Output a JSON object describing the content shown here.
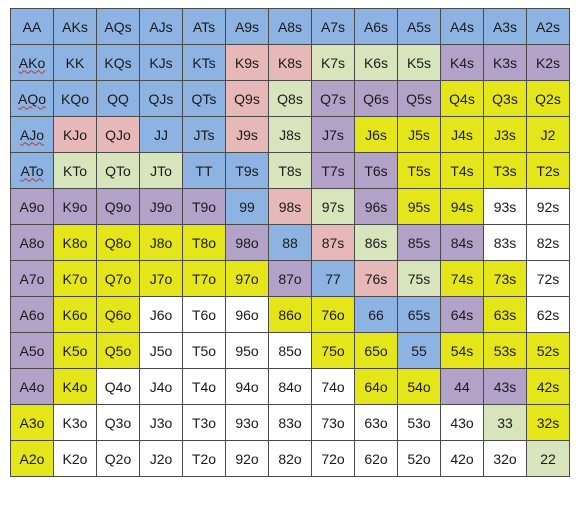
{
  "colors": {
    "B": "#8db3e2",
    "P": "#e6b9b8",
    "G": "#d7e4bc",
    "V": "#b3a2c7",
    "Y": "#e4e619",
    "W": "#ffffff"
  },
  "rows": [
    [
      [
        "AA",
        "B"
      ],
      [
        "AKs",
        "B"
      ],
      [
        "AQs",
        "B"
      ],
      [
        "AJs",
        "B"
      ],
      [
        "ATs",
        "B"
      ],
      [
        "A9s",
        "B"
      ],
      [
        "A8s",
        "B"
      ],
      [
        "A7s",
        "B"
      ],
      [
        "A6s",
        "B"
      ],
      [
        "A5s",
        "B"
      ],
      [
        "A4s",
        "B"
      ],
      [
        "A3s",
        "B"
      ],
      [
        "A2s",
        "B"
      ]
    ],
    [
      [
        "AKo",
        "B"
      ],
      [
        "KK",
        "B"
      ],
      [
        "KQs",
        "B"
      ],
      [
        "KJs",
        "B"
      ],
      [
        "KTs",
        "B"
      ],
      [
        "K9s",
        "P"
      ],
      [
        "K8s",
        "P"
      ],
      [
        "K7s",
        "G"
      ],
      [
        "K6s",
        "G"
      ],
      [
        "K5s",
        "G"
      ],
      [
        "K4s",
        "V"
      ],
      [
        "K3s",
        "V"
      ],
      [
        "K2s",
        "V"
      ]
    ],
    [
      [
        "AQo",
        "B"
      ],
      [
        "KQo",
        "B"
      ],
      [
        "QQ",
        "B"
      ],
      [
        "QJs",
        "B"
      ],
      [
        "QTs",
        "B"
      ],
      [
        "Q9s",
        "P"
      ],
      [
        "Q8s",
        "G"
      ],
      [
        "Q7s",
        "V"
      ],
      [
        "Q6s",
        "V"
      ],
      [
        "Q5s",
        "V"
      ],
      [
        "Q4s",
        "Y"
      ],
      [
        "Q3s",
        "Y"
      ],
      [
        "Q2s",
        "Y"
      ]
    ],
    [
      [
        "AJo",
        "B"
      ],
      [
        "KJo",
        "P"
      ],
      [
        "QJo",
        "P"
      ],
      [
        "JJ",
        "B"
      ],
      [
        "JTs",
        "B"
      ],
      [
        "J9s",
        "P"
      ],
      [
        "J8s",
        "G"
      ],
      [
        "J7s",
        "V"
      ],
      [
        "J6s",
        "Y"
      ],
      [
        "J5s",
        "Y"
      ],
      [
        "J4s",
        "Y"
      ],
      [
        "J3s",
        "Y"
      ],
      [
        "J2",
        "Y"
      ]
    ],
    [
      [
        "ATo",
        "B"
      ],
      [
        "KTo",
        "G"
      ],
      [
        "QTo",
        "G"
      ],
      [
        "JTo",
        "G"
      ],
      [
        "TT",
        "B"
      ],
      [
        "T9s",
        "B"
      ],
      [
        "T8s",
        "G"
      ],
      [
        "T7s",
        "V"
      ],
      [
        "T6s",
        "V"
      ],
      [
        "T5s",
        "Y"
      ],
      [
        "T4s",
        "Y"
      ],
      [
        "T3s",
        "Y"
      ],
      [
        "T2s",
        "Y"
      ]
    ],
    [
      [
        "A9o",
        "V"
      ],
      [
        "K9o",
        "V"
      ],
      [
        "Q9o",
        "V"
      ],
      [
        "J9o",
        "V"
      ],
      [
        "T9o",
        "V"
      ],
      [
        "99",
        "B"
      ],
      [
        "98s",
        "P"
      ],
      [
        "97s",
        "G"
      ],
      [
        "96s",
        "V"
      ],
      [
        "95s",
        "Y"
      ],
      [
        "94s",
        "Y"
      ],
      [
        "93s",
        "W"
      ],
      [
        "92s",
        "W"
      ]
    ],
    [
      [
        "A8o",
        "V"
      ],
      [
        "K8o",
        "Y"
      ],
      [
        "Q8o",
        "Y"
      ],
      [
        "J8o",
        "Y"
      ],
      [
        "T8o",
        "Y"
      ],
      [
        "98o",
        "V"
      ],
      [
        "88",
        "B"
      ],
      [
        "87s",
        "P"
      ],
      [
        "86s",
        "G"
      ],
      [
        "85s",
        "V"
      ],
      [
        "84s",
        "V"
      ],
      [
        "83s",
        "W"
      ],
      [
        "82s",
        "W"
      ]
    ],
    [
      [
        "A7o",
        "V"
      ],
      [
        "K7o",
        "Y"
      ],
      [
        "Q7o",
        "Y"
      ],
      [
        "J7o",
        "Y"
      ],
      [
        "T7o",
        "Y"
      ],
      [
        "97o",
        "Y"
      ],
      [
        "87o",
        "V"
      ],
      [
        "77",
        "B"
      ],
      [
        "76s",
        "P"
      ],
      [
        "75s",
        "G"
      ],
      [
        "74s",
        "Y"
      ],
      [
        "73s",
        "Y"
      ],
      [
        "72s",
        "W"
      ]
    ],
    [
      [
        "A6o",
        "V"
      ],
      [
        "K6o",
        "Y"
      ],
      [
        "Q6o",
        "Y"
      ],
      [
        "J6o",
        "W"
      ],
      [
        "T6o",
        "W"
      ],
      [
        "96o",
        "W"
      ],
      [
        "86o",
        "Y"
      ],
      [
        "76o",
        "Y"
      ],
      [
        "66",
        "B"
      ],
      [
        "65s",
        "B"
      ],
      [
        "64s",
        "V"
      ],
      [
        "63s",
        "Y"
      ],
      [
        "62s",
        "W"
      ]
    ],
    [
      [
        "A5o",
        "V"
      ],
      [
        "K5o",
        "Y"
      ],
      [
        "Q5o",
        "Y"
      ],
      [
        "J5o",
        "W"
      ],
      [
        "T5o",
        "W"
      ],
      [
        "95o",
        "W"
      ],
      [
        "85o",
        "W"
      ],
      [
        "75o",
        "Y"
      ],
      [
        "65o",
        "Y"
      ],
      [
        "55",
        "B"
      ],
      [
        "54s",
        "Y"
      ],
      [
        "53s",
        "Y"
      ],
      [
        "52s",
        "Y"
      ]
    ],
    [
      [
        "A4o",
        "V"
      ],
      [
        "K4o",
        "Y"
      ],
      [
        "Q4o",
        "W"
      ],
      [
        "J4o",
        "W"
      ],
      [
        "T4o",
        "W"
      ],
      [
        "94o",
        "W"
      ],
      [
        "84o",
        "W"
      ],
      [
        "74o",
        "W"
      ],
      [
        "64o",
        "Y"
      ],
      [
        "54o",
        "Y"
      ],
      [
        "44",
        "V"
      ],
      [
        "43s",
        "V"
      ],
      [
        "42s",
        "Y"
      ]
    ],
    [
      [
        "A3o",
        "Y"
      ],
      [
        "K3o",
        "W"
      ],
      [
        "Q3o",
        "W"
      ],
      [
        "J3o",
        "W"
      ],
      [
        "T3o",
        "W"
      ],
      [
        "93o",
        "W"
      ],
      [
        "83o",
        "W"
      ],
      [
        "73o",
        "W"
      ],
      [
        "63o",
        "W"
      ],
      [
        "53o",
        "W"
      ],
      [
        "43o",
        "W"
      ],
      [
        "33",
        "G"
      ],
      [
        "32s",
        "Y"
      ]
    ],
    [
      [
        "A2o",
        "Y"
      ],
      [
        "K2o",
        "W"
      ],
      [
        "Q2o",
        "W"
      ],
      [
        "J2o",
        "W"
      ],
      [
        "T2o",
        "W"
      ],
      [
        "92o",
        "W"
      ],
      [
        "82o",
        "W"
      ],
      [
        "72o",
        "W"
      ],
      [
        "62o",
        "W"
      ],
      [
        "52o",
        "W"
      ],
      [
        "42o",
        "W"
      ],
      [
        "32o",
        "W"
      ],
      [
        "22",
        "G"
      ]
    ]
  ],
  "spell_flagged": [
    "AKo",
    "AQo",
    "AJo",
    "ATo"
  ]
}
